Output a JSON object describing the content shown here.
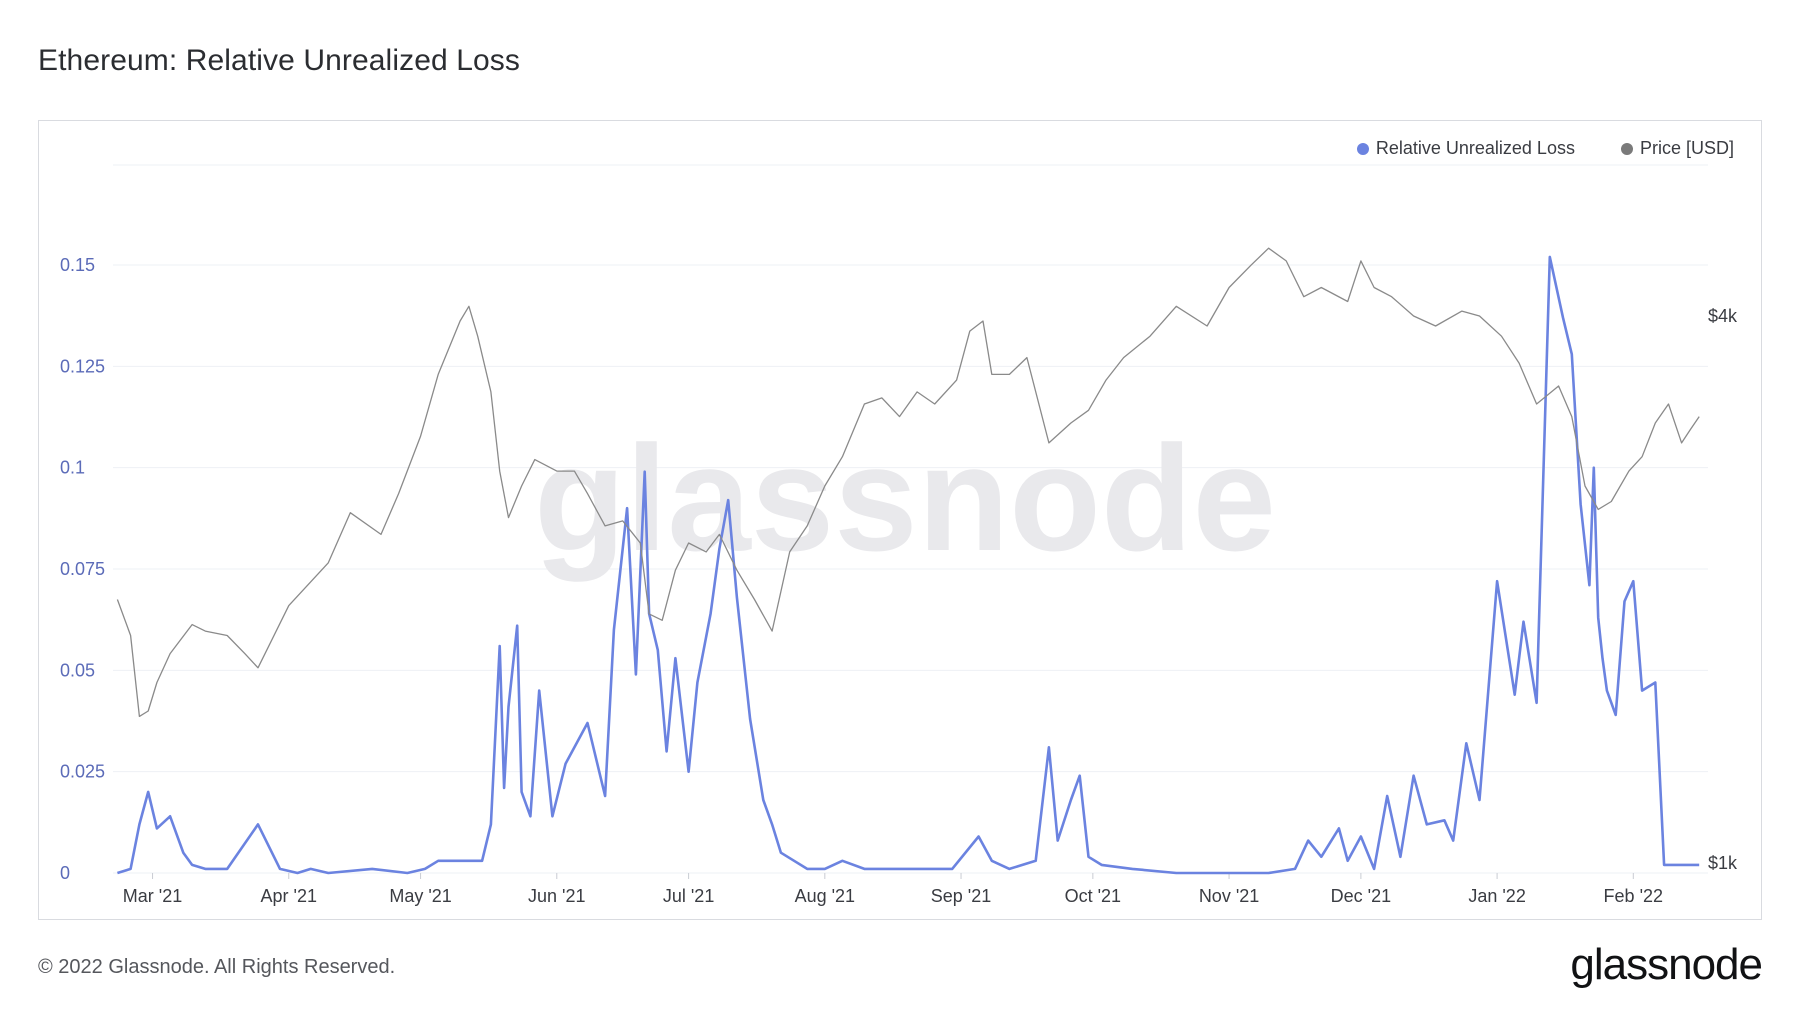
{
  "title": "Ethereum: Relative Unrealized Loss",
  "footer": "© 2022 Glassnode. All Rights Reserved.",
  "brand": "glassnode",
  "watermark": "glassnode",
  "colors": {
    "loss": "#6b83e0",
    "price": "#8a8a8a",
    "left_axis": "#5b6bb8",
    "grid": "#eef0f4"
  },
  "chart_data": {
    "type": "line",
    "legend": [
      "Relative Unrealized Loss",
      "Price [USD]"
    ],
    "legend_position": "top-right",
    "left_axis": {
      "ticks": [
        "0",
        "0.025",
        "0.05",
        "0.075",
        "0.1",
        "0.125",
        "0.15"
      ],
      "range": [
        0,
        0.17
      ]
    },
    "right_axis": {
      "ticks": [
        "$1k",
        "$4k"
      ],
      "scale": "log"
    },
    "x_ticks": [
      "Mar '21",
      "Apr '21",
      "May '21",
      "Jun '21",
      "Jul '21",
      "Aug '21",
      "Sep '21",
      "Oct '21",
      "Nov '21",
      "Dec '21",
      "Jan '22",
      "Feb '22"
    ],
    "grid": true,
    "series": [
      {
        "name": "Relative Unrealized Loss",
        "axis": "left",
        "x": [
          "2021-02-21",
          "2021-02-24",
          "2021-02-26",
          "2021-02-28",
          "2021-03-02",
          "2021-03-05",
          "2021-03-08",
          "2021-03-10",
          "2021-03-13",
          "2021-03-18",
          "2021-03-25",
          "2021-03-30",
          "2021-04-03",
          "2021-04-06",
          "2021-04-10",
          "2021-04-20",
          "2021-04-28",
          "2021-05-02",
          "2021-05-05",
          "2021-05-15",
          "2021-05-17",
          "2021-05-19",
          "2021-05-20",
          "2021-05-21",
          "2021-05-23",
          "2021-05-24",
          "2021-05-26",
          "2021-05-28",
          "2021-05-31",
          "2021-06-03",
          "2021-06-08",
          "2021-06-12",
          "2021-06-14",
          "2021-06-17",
          "2021-06-19",
          "2021-06-21",
          "2021-06-22",
          "2021-06-24",
          "2021-06-26",
          "2021-06-28",
          "2021-07-01",
          "2021-07-03",
          "2021-07-06",
          "2021-07-08",
          "2021-07-10",
          "2021-07-12",
          "2021-07-15",
          "2021-07-18",
          "2021-07-20",
          "2021-07-22",
          "2021-07-25",
          "2021-07-28",
          "2021-08-01",
          "2021-08-05",
          "2021-08-10",
          "2021-08-20",
          "2021-08-30",
          "2021-09-05",
          "2021-09-08",
          "2021-09-12",
          "2021-09-18",
          "2021-09-21",
          "2021-09-23",
          "2021-09-26",
          "2021-09-28",
          "2021-09-30",
          "2021-10-03",
          "2021-10-10",
          "2021-10-20",
          "2021-11-01",
          "2021-11-10",
          "2021-11-16",
          "2021-11-19",
          "2021-11-22",
          "2021-11-26",
          "2021-11-28",
          "2021-12-01",
          "2021-12-04",
          "2021-12-07",
          "2021-12-10",
          "2021-12-13",
          "2021-12-16",
          "2021-12-20",
          "2021-12-22",
          "2021-12-25",
          "2021-12-28",
          "2022-01-01",
          "2022-01-05",
          "2022-01-07",
          "2022-01-10",
          "2022-01-13",
          "2022-01-16",
          "2022-01-18",
          "2022-01-20",
          "2022-01-22",
          "2022-01-23",
          "2022-01-24",
          "2022-01-25",
          "2022-01-26",
          "2022-01-28",
          "2022-01-30",
          "2022-02-01",
          "2022-02-03",
          "2022-02-06",
          "2022-02-08",
          "2022-02-10",
          "2022-02-12",
          "2022-02-14",
          "2022-02-15",
          "2022-02-16"
        ],
        "values": [
          0,
          0.001,
          0.012,
          0.02,
          0.011,
          0.014,
          0.005,
          0.002,
          0.001,
          0.001,
          0.012,
          0.001,
          0,
          0.001,
          0,
          0.001,
          0,
          0.001,
          0.003,
          0.003,
          0.012,
          0.056,
          0.021,
          0.041,
          0.061,
          0.02,
          0.014,
          0.045,
          0.014,
          0.027,
          0.037,
          0.019,
          0.06,
          0.09,
          0.049,
          0.099,
          0.064,
          0.055,
          0.03,
          0.053,
          0.025,
          0.047,
          0.064,
          0.08,
          0.092,
          0.068,
          0.038,
          0.018,
          0.012,
          0.005,
          0.003,
          0.001,
          0.001,
          0.003,
          0.001,
          0.001,
          0.001,
          0.009,
          0.003,
          0.001,
          0.003,
          0.031,
          0.008,
          0.018,
          0.024,
          0.004,
          0.002,
          0.001,
          0,
          0,
          0,
          0.001,
          0.008,
          0.004,
          0.011,
          0.003,
          0.009,
          0.001,
          0.019,
          0.004,
          0.024,
          0.012,
          0.013,
          0.008,
          0.032,
          0.018,
          0.072,
          0.044,
          0.062,
          0.042,
          0.152,
          0.137,
          0.128,
          0.091,
          0.071,
          0.1,
          0.063,
          0.053,
          0.045,
          0.039,
          0.067,
          0.072,
          0.045,
          0.047,
          0.002,
          0.002,
          0.002,
          0.002,
          0.002,
          0.002
        ],
        "color": "#6b83e0"
      },
      {
        "name": "Price [USD]",
        "axis": "right",
        "x": [
          "2021-02-21",
          "2021-02-24",
          "2021-02-26",
          "2021-02-28",
          "2021-03-02",
          "2021-03-05",
          "2021-03-10",
          "2021-03-13",
          "2021-03-18",
          "2021-03-22",
          "2021-03-25",
          "2021-04-01",
          "2021-04-10",
          "2021-04-15",
          "2021-04-22",
          "2021-04-26",
          "2021-05-01",
          "2021-05-05",
          "2021-05-10",
          "2021-05-12",
          "2021-05-14",
          "2021-05-17",
          "2021-05-19",
          "2021-05-21",
          "2021-05-24",
          "2021-05-27",
          "2021-06-01",
          "2021-06-05",
          "2021-06-08",
          "2021-06-12",
          "2021-06-16",
          "2021-06-20",
          "2021-06-22",
          "2021-06-25",
          "2021-06-28",
          "2021-07-01",
          "2021-07-05",
          "2021-07-08",
          "2021-07-12",
          "2021-07-16",
          "2021-07-20",
          "2021-07-24",
          "2021-07-28",
          "2021-08-01",
          "2021-08-05",
          "2021-08-10",
          "2021-08-14",
          "2021-08-18",
          "2021-08-22",
          "2021-08-26",
          "2021-08-31",
          "2021-09-03",
          "2021-09-06",
          "2021-09-08",
          "2021-09-12",
          "2021-09-16",
          "2021-09-21",
          "2021-09-26",
          "2021-09-30",
          "2021-10-04",
          "2021-10-08",
          "2021-10-14",
          "2021-10-20",
          "2021-10-27",
          "2021-11-01",
          "2021-11-06",
          "2021-11-10",
          "2021-11-14",
          "2021-11-18",
          "2021-11-22",
          "2021-11-28",
          "2021-12-01",
          "2021-12-04",
          "2021-12-08",
          "2021-12-13",
          "2021-12-18",
          "2021-12-24",
          "2021-12-28",
          "2022-01-02",
          "2022-01-06",
          "2022-01-10",
          "2022-01-15",
          "2022-01-18",
          "2022-01-21",
          "2022-01-24",
          "2022-01-27",
          "2022-01-31",
          "2022-02-03",
          "2022-02-06",
          "2022-02-09",
          "2022-02-12",
          "2022-02-14",
          "2022-02-16"
        ],
        "values": [
          1950,
          1780,
          1450,
          1470,
          1580,
          1700,
          1830,
          1800,
          1780,
          1700,
          1640,
          1920,
          2140,
          2430,
          2300,
          2550,
          2950,
          3450,
          3950,
          4100,
          3800,
          3300,
          2700,
          2400,
          2600,
          2780,
          2700,
          2700,
          2550,
          2350,
          2380,
          2250,
          1880,
          1850,
          2100,
          2250,
          2200,
          2300,
          2100,
          1950,
          1800,
          2200,
          2350,
          2600,
          2800,
          3200,
          3250,
          3100,
          3300,
          3200,
          3400,
          3850,
          3950,
          3450,
          3450,
          3600,
          2900,
          3050,
          3150,
          3400,
          3600,
          3800,
          4100,
          3900,
          4300,
          4550,
          4750,
          4600,
          4200,
          4300,
          4150,
          4600,
          4300,
          4200,
          4000,
          3900,
          4050,
          4000,
          3800,
          3550,
          3200,
          3350,
          3100,
          2600,
          2450,
          2500,
          2700,
          2800,
          3050,
          3200,
          2900,
          3000,
          3100
        ],
        "color": "#8a8a8a"
      }
    ]
  }
}
